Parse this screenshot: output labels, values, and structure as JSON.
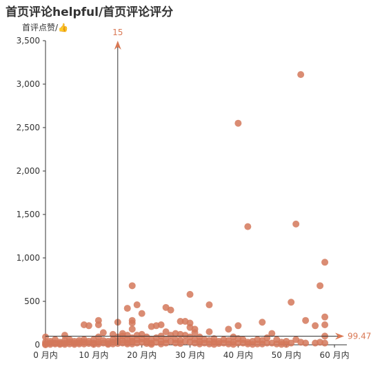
{
  "title": "首页评论helpful/首页评论评分",
  "y_axis_name": "首评点赞/👍",
  "colors": {
    "point": "#d4785a",
    "markline": "#d97854",
    "axis": "#333333"
  },
  "chart_data": {
    "type": "scatter",
    "title": "首页评论helpful/首页评论评分",
    "ylabel": "首评点赞/👍",
    "xlabel": "",
    "x_unit": "月内",
    "xlim": [
      0,
      62
    ],
    "ylim": [
      0,
      3500
    ],
    "x_ticks": [
      0,
      10,
      20,
      30,
      40,
      50,
      60
    ],
    "x_tick_labels": [
      "0 月内",
      "10 月内",
      "20 月内",
      "30 月内",
      "40 月内",
      "50 月内",
      "60 月内"
    ],
    "y_ticks": [
      0,
      500,
      1000,
      1500,
      2000,
      2500,
      3000,
      3500
    ],
    "y_tick_labels": [
      "0",
      "500",
      "1,000",
      "1,500",
      "2,000",
      "2,500",
      "3,000",
      "3,500"
    ],
    "grid": false,
    "mark_lines": {
      "x": 15,
      "x_label": "15",
      "y": 99.47,
      "y_label": "99.47"
    },
    "points": [
      [
        0,
        90
      ],
      [
        0,
        30
      ],
      [
        0,
        10
      ],
      [
        0,
        0
      ],
      [
        1,
        40
      ],
      [
        1,
        20
      ],
      [
        1,
        5
      ],
      [
        2,
        60
      ],
      [
        2,
        20
      ],
      [
        2,
        10
      ],
      [
        3,
        30
      ],
      [
        3,
        15
      ],
      [
        3,
        5
      ],
      [
        4,
        110
      ],
      [
        4,
        50
      ],
      [
        4,
        20
      ],
      [
        4,
        5
      ],
      [
        5,
        60
      ],
      [
        5,
        30
      ],
      [
        5,
        10
      ],
      [
        6,
        40
      ],
      [
        6,
        20
      ],
      [
        6,
        5
      ],
      [
        7,
        50
      ],
      [
        7,
        25
      ],
      [
        7,
        10
      ],
      [
        8,
        230
      ],
      [
        8,
        60
      ],
      [
        8,
        30
      ],
      [
        8,
        10
      ],
      [
        9,
        220
      ],
      [
        9,
        40
      ],
      [
        9,
        15
      ],
      [
        10,
        60
      ],
      [
        10,
        20
      ],
      [
        10,
        5
      ],
      [
        11,
        280
      ],
      [
        11,
        230
      ],
      [
        11,
        90
      ],
      [
        11,
        30
      ],
      [
        11,
        10
      ],
      [
        12,
        140
      ],
      [
        12,
        50
      ],
      [
        12,
        20
      ],
      [
        13,
        40
      ],
      [
        13,
        15
      ],
      [
        13,
        5
      ],
      [
        14,
        120
      ],
      [
        14,
        60
      ],
      [
        14,
        30
      ],
      [
        14,
        10
      ],
      [
        15,
        260
      ],
      [
        15,
        90
      ],
      [
        15,
        40
      ],
      [
        15,
        15
      ],
      [
        16,
        130
      ],
      [
        16,
        100
      ],
      [
        16,
        50
      ],
      [
        16,
        20
      ],
      [
        17,
        420
      ],
      [
        17,
        110
      ],
      [
        17,
        60
      ],
      [
        17,
        25
      ],
      [
        17,
        10
      ],
      [
        18,
        680
      ],
      [
        18,
        280
      ],
      [
        18,
        250
      ],
      [
        18,
        180
      ],
      [
        18,
        80
      ],
      [
        18,
        40
      ],
      [
        18,
        10
      ],
      [
        19,
        460
      ],
      [
        19,
        110
      ],
      [
        19,
        60
      ],
      [
        19,
        20
      ],
      [
        20,
        360
      ],
      [
        20,
        120
      ],
      [
        20,
        70
      ],
      [
        20,
        30
      ],
      [
        21,
        90
      ],
      [
        21,
        40
      ],
      [
        21,
        15
      ],
      [
        22,
        210
      ],
      [
        22,
        60
      ],
      [
        22,
        20
      ],
      [
        22,
        5
      ],
      [
        23,
        220
      ],
      [
        23,
        80
      ],
      [
        23,
        30
      ],
      [
        24,
        230
      ],
      [
        24,
        100
      ],
      [
        24,
        40
      ],
      [
        24,
        10
      ],
      [
        25,
        430
      ],
      [
        25,
        150
      ],
      [
        25,
        60
      ],
      [
        25,
        20
      ],
      [
        26,
        400
      ],
      [
        26,
        110
      ],
      [
        26,
        40
      ],
      [
        27,
        130
      ],
      [
        27,
        60
      ],
      [
        27,
        20
      ],
      [
        28,
        270
      ],
      [
        28,
        120
      ],
      [
        28,
        50
      ],
      [
        28,
        15
      ],
      [
        29,
        270
      ],
      [
        29,
        110
      ],
      [
        29,
        40
      ],
      [
        30,
        580
      ],
      [
        30,
        250
      ],
      [
        30,
        200
      ],
      [
        30,
        90
      ],
      [
        30,
        30
      ],
      [
        31,
        180
      ],
      [
        31,
        140
      ],
      [
        31,
        60
      ],
      [
        31,
        20
      ],
      [
        32,
        90
      ],
      [
        32,
        40
      ],
      [
        32,
        10
      ],
      [
        33,
        60
      ],
      [
        33,
        20
      ],
      [
        34,
        460
      ],
      [
        34,
        150
      ],
      [
        34,
        50
      ],
      [
        34,
        10
      ],
      [
        35,
        70
      ],
      [
        35,
        30
      ],
      [
        35,
        5
      ],
      [
        36,
        40
      ],
      [
        36,
        15
      ],
      [
        37,
        60
      ],
      [
        37,
        20
      ],
      [
        38,
        180
      ],
      [
        38,
        50
      ],
      [
        38,
        10
      ],
      [
        39,
        90
      ],
      [
        39,
        30
      ],
      [
        39,
        5
      ],
      [
        40,
        2550
      ],
      [
        40,
        220
      ],
      [
        40,
        70
      ],
      [
        40,
        20
      ],
      [
        41,
        60
      ],
      [
        41,
        20
      ],
      [
        42,
        1360
      ],
      [
        42,
        30
      ],
      [
        42,
        10
      ],
      [
        43,
        40
      ],
      [
        43,
        5
      ],
      [
        44,
        60
      ],
      [
        44,
        10
      ],
      [
        45,
        260
      ],
      [
        45,
        50
      ],
      [
        45,
        10
      ],
      [
        46,
        80
      ],
      [
        46,
        20
      ],
      [
        47,
        130
      ],
      [
        47,
        20
      ],
      [
        48,
        60
      ],
      [
        48,
        10
      ],
      [
        49,
        30
      ],
      [
        49,
        5
      ],
      [
        50,
        40
      ],
      [
        50,
        5
      ],
      [
        51,
        490
      ],
      [
        51,
        20
      ],
      [
        52,
        1390
      ],
      [
        52,
        60
      ],
      [
        53,
        3110
      ],
      [
        53,
        30
      ],
      [
        54,
        280
      ],
      [
        54,
        20
      ],
      [
        56,
        220
      ],
      [
        56,
        20
      ],
      [
        57,
        680
      ],
      [
        57,
        30
      ],
      [
        58,
        950
      ],
      [
        58,
        320
      ],
      [
        58,
        230
      ],
      [
        58,
        100
      ],
      [
        58,
        20
      ]
    ]
  }
}
